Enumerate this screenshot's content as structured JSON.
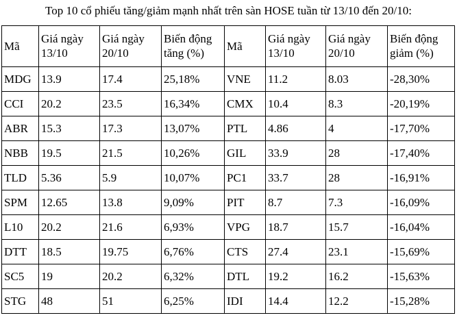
{
  "title": "Top 10 cổ phiếu tăng/giảm mạnh nhất trên sàn HOSE tuần từ 13/10 đến 20/10:",
  "table": {
    "headers": [
      "Mã",
      "Giá ngày 13/10",
      "Giá ngày 20/10",
      "Biến động tăng (%)",
      "Mã",
      "Giá ngày 13/10",
      "Giá ngày 20/10",
      "Biến động giảm (%)"
    ],
    "rows": [
      [
        "MDG",
        "13.9",
        "17.4",
        "25,18%",
        "VNE",
        "11.2",
        "8.03",
        "-28,30%"
      ],
      [
        "CCI",
        "20.2",
        "23.5",
        "16,34%",
        "CMX",
        "10.4",
        "8.3",
        "-20,19%"
      ],
      [
        "ABR",
        "15.3",
        "17.3",
        "13,07%",
        "PTL",
        "4.86",
        "4",
        "-17,70%"
      ],
      [
        "NBB",
        "19.5",
        "21.5",
        "10,26%",
        "GIL",
        "33.9",
        "28",
        "-17,40%"
      ],
      [
        "TLD",
        "5.36",
        "5.9",
        "10,07%",
        "PC1",
        "33.7",
        "28",
        "-16,91%"
      ],
      [
        "SPM",
        "12.65",
        "13.8",
        "9,09%",
        "PIT",
        "8.7",
        "7.3",
        "-16,09%"
      ],
      [
        "L10",
        "20.2",
        "21.6",
        "6,93%",
        "VPG",
        "18.7",
        "15.7",
        "-16,04%"
      ],
      [
        "DTT",
        "18.5",
        "19.75",
        "6,76%",
        "CTS",
        "27.4",
        "23.1",
        "-15,69%"
      ],
      [
        "SC5",
        "19",
        "20.2",
        "6,32%",
        "DTL",
        "19.2",
        "16.2",
        "-15,63%"
      ],
      [
        "STG",
        "48",
        "51",
        "6,25%",
        "IDI",
        "14.4",
        "12.2",
        "-15,28%"
      ]
    ]
  }
}
